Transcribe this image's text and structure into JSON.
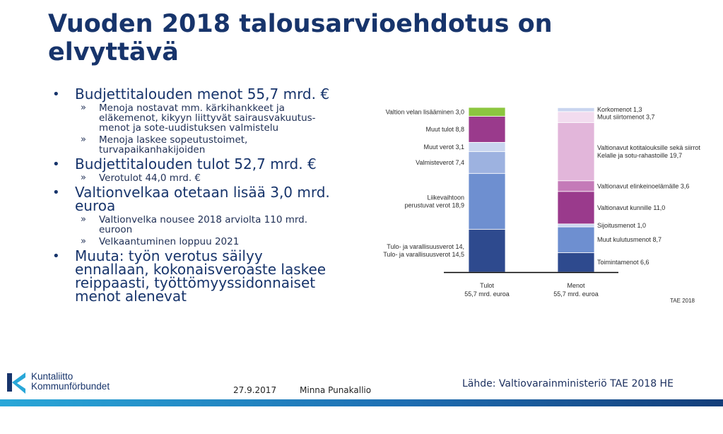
{
  "title": "Vuoden 2018 talousarvioehdotus on elvyttävä",
  "bullets": [
    {
      "text": "Budjettitalouden menot 55,7 mrd. €",
      "subs": [
        "Menoja nostavat mm. kärkihankkeet ja eläkemenot, kikyyn liittyvät sairausvakuutus-menot ja sote-uudistuksen valmistelu",
        "Menoja laskee sopeutustoimet, turvapaikanhakijoiden"
      ]
    },
    {
      "text": "Budjettitalouden tulot 52,7 mrd. €",
      "subs": [
        "Verotulot 44,0 mrd. €"
      ]
    },
    {
      "text": "Valtionvelkaa otetaan lisää 3,0 mrd. euroa",
      "subs": [
        "Valtionvelka nousee 2018 arviolta 110 mrd. euroon",
        "Velkaantuminen loppuu 2021"
      ]
    },
    {
      "text": "Muuta: työn verotus säilyy ennallaan, kokonaisveroaste laskee reippaasti, työttömyyssidonnaiset menot alenevat",
      "subs": []
    }
  ],
  "chart_data": {
    "type": "bar",
    "stacked": true,
    "unit": "mrd. euroa",
    "ylim": [
      0,
      55.7
    ],
    "categories": [
      "Tulot\n55,7 mrd. euroa",
      "Menot\n55,7 mrd. euroa"
    ],
    "stacks": [
      {
        "name": "Tulot",
        "label_lines": [
          "Tulot",
          "55,7 mrd. euroa"
        ],
        "segments": [
          {
            "label": "Tulo- ja varallisuusverot 14,5",
            "value": 14.5,
            "color": "#2e4a8e"
          },
          {
            "label": "Liikevaihtoon perustuvat verot 18,9",
            "value": 18.9,
            "color": "#6e8fd0"
          },
          {
            "label": "Valmisteverot 7,4",
            "value": 7.4,
            "color": "#9db2e0"
          },
          {
            "label": "Muut verot 3,1",
            "value": 3.1,
            "color": "#c9d5ef"
          },
          {
            "label": "Muut tulot 8,8",
            "value": 8.8,
            "color": "#9a3a8c"
          },
          {
            "label": "Valtion velan lisääminen 3,0",
            "value": 3.0,
            "color": "#8cc63f"
          }
        ]
      },
      {
        "name": "Menot",
        "label_lines": [
          "Menot",
          "55,7 mrd. euroa"
        ],
        "segments": [
          {
            "label": "Toimintamenot 6,6",
            "value": 6.6,
            "color": "#2e4a8e"
          },
          {
            "label": "Muut kulutusmenot 8,7",
            "value": 8.7,
            "color": "#6e8fd0"
          },
          {
            "label": "Sijoitusmenot 1,0",
            "value": 1.0,
            "color": "#c9d5ef"
          },
          {
            "label": "Valtionavut kunnille 11,0",
            "value": 11.0,
            "color": "#9a3a8c"
          },
          {
            "label": "Valtionavut elinkeinoelämälle 3,6",
            "value": 3.6,
            "color": "#c47ab8"
          },
          {
            "label": "Valtionavut kotitalouksille sekä siirrot Kelalle ja sotu-rahastoille 19,7",
            "value": 19.7,
            "color": "#e2b6da"
          },
          {
            "label": "Muut siirtomenot 3,7",
            "value": 3.7,
            "color": "#f2dcef"
          },
          {
            "label": "Korkomenot 1,3",
            "value": 1.3,
            "color": "#c9d5ef"
          }
        ]
      }
    ],
    "annotation": "TAE 2018"
  },
  "source": "Lähde: Valtiovarainministeriö TAE 2018 HE",
  "footer": {
    "date": "27.9.2017",
    "author": "Minna Punakallio"
  },
  "logo": {
    "line1": "Kuntaliitto",
    "line2": "Kommunförbundet"
  },
  "colors": {
    "title": "#17346b",
    "bar_gradient_start": "#29a7d8",
    "bar_gradient_end": "#143e7a"
  }
}
